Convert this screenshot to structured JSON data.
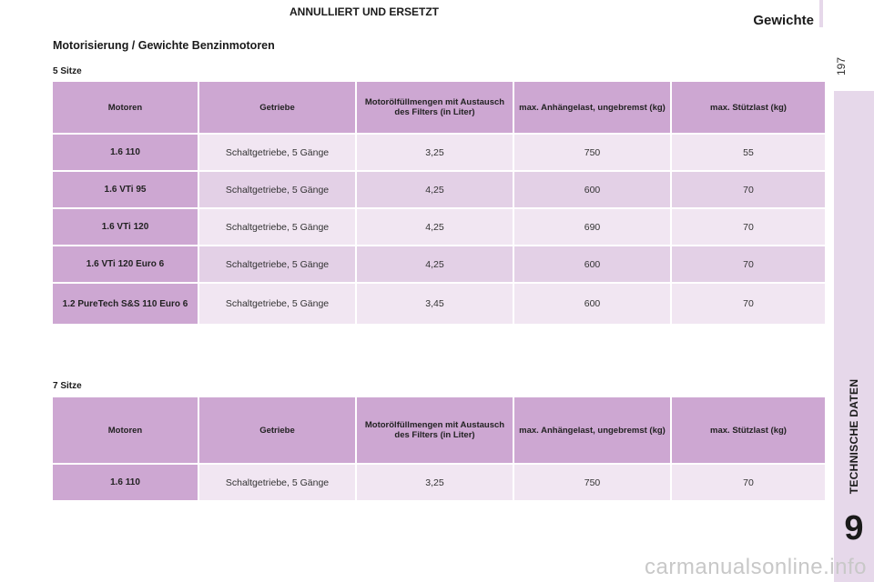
{
  "header": {
    "banner": "ANNULLIERT UND ERSETZT",
    "section_title": "Gewichte",
    "page_number": "197"
  },
  "sidebar": {
    "chapter_label": "TECHNISCHE DATEN",
    "chapter_number": "9"
  },
  "main": {
    "heading": "Motorisierung / Gewichte Benzinmotoren"
  },
  "columns": [
    "Motoren",
    "Getriebe",
    "Motorölfüllmengen mit Austausch des Filters (in Liter)",
    "max. Anhängelast, ungebremst (kg)",
    "max. Stützlast (kg)"
  ],
  "tables": [
    {
      "label": "5 Sitze",
      "rows": [
        {
          "engine": "1.6 110",
          "gearbox": "Schaltgetriebe, 5 Gänge",
          "oil": "3,25",
          "trailer": "750",
          "nose": "55"
        },
        {
          "engine": "1.6 VTi 95",
          "gearbox": "Schaltgetriebe, 5 Gänge",
          "oil": "4,25",
          "trailer": "600",
          "nose": "70"
        },
        {
          "engine": "1.6 VTi 120",
          "gearbox": "Schaltgetriebe, 5 Gänge",
          "oil": "4,25",
          "trailer": "690",
          "nose": "70"
        },
        {
          "engine": "1.6 VTi 120 Euro 6",
          "gearbox": "Schaltgetriebe, 5 Gänge",
          "oil": "4,25",
          "trailer": "600",
          "nose": "70"
        },
        {
          "engine": "1.2 PureTech S&S 110 Euro 6",
          "gearbox": "Schaltgetriebe, 5 Gänge",
          "oil": "3,45",
          "trailer": "600",
          "nose": "70"
        }
      ]
    },
    {
      "label": "7 Sitze",
      "rows": [
        {
          "engine": "1.6 110",
          "gearbox": "Schaltgetriebe, 5 Gänge",
          "oil": "3,25",
          "trailer": "750",
          "nose": "70"
        }
      ]
    }
  ],
  "watermark": "carmanualsonline.info"
}
